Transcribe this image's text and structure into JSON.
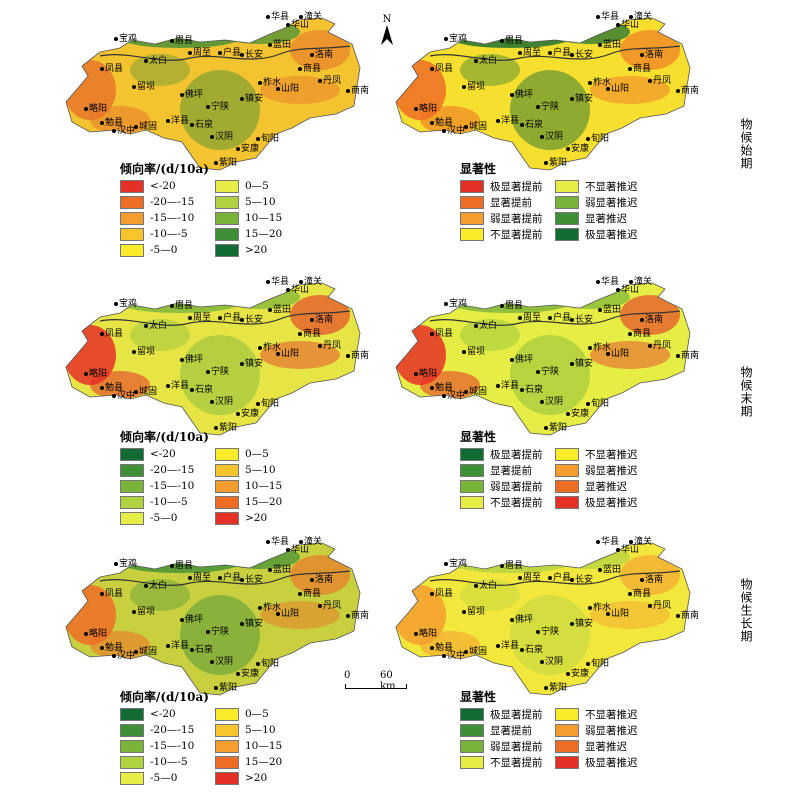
{
  "north_label": "N",
  "scale_bar": {
    "start": "0",
    "end": "60 km"
  },
  "period_labels": [
    "物候始期",
    "物候末期",
    "物候生长期"
  ],
  "cities": [
    "宝鸡",
    "眉县",
    "华县",
    "潼关",
    "华山",
    "蓝田",
    "周至",
    "户县",
    "长安",
    "太白",
    "凤县",
    "洛南",
    "商县",
    "柞水",
    "丹凤",
    "留坝",
    "佛坪",
    "镇安",
    "山阳",
    "商南",
    "略阳",
    "宁陕",
    "勉县",
    "洋县",
    "城固",
    "汉中",
    "石泉",
    "汉阴",
    "旬阳",
    "安康",
    "紫阳"
  ],
  "city_labels_alt": {
    "户县": "户县",
    "城固": "城固"
  },
  "legend_trend": {
    "title": "倾向率/(d/10a)",
    "rows_start": [
      {
        "label": "<-20",
        "color": "#e53027"
      },
      {
        "label": "-20—-15",
        "color": "#ee6d25"
      },
      {
        "label": "-15—-10",
        "color": "#f59d2e"
      },
      {
        "label": "-10—-5",
        "color": "#f9c52f"
      },
      {
        "label": "-5—0",
        "color": "#fbec2b"
      },
      {
        "label": "0—5",
        "color": "#e6ee45"
      },
      {
        "label": "5—10",
        "color": "#b1d241"
      },
      {
        "label": "10—15",
        "color": "#79b33a"
      },
      {
        "label": "15—20",
        "color": "#3f8f36"
      },
      {
        "label": ">20",
        "color": "#126b33"
      }
    ],
    "rows_end": [
      {
        "label": "<-20",
        "color": "#126b33"
      },
      {
        "label": "-20—-15",
        "color": "#3f8f36"
      },
      {
        "label": "-15—-10",
        "color": "#79b33a"
      },
      {
        "label": "-10—-5",
        "color": "#b1d241"
      },
      {
        "label": "-5—0",
        "color": "#e6ee45"
      },
      {
        "label": "0—5",
        "color": "#fbec2b"
      },
      {
        "label": "5—10",
        "color": "#f9c52f"
      },
      {
        "label": "10—15",
        "color": "#f59d2e"
      },
      {
        "label": "15—20",
        "color": "#ee6d25"
      },
      {
        "label": ">20",
        "color": "#e53027"
      }
    ]
  },
  "legend_sig": {
    "title": "显著性",
    "rows_start": [
      {
        "label": "极显著提前",
        "color": "#e53027"
      },
      {
        "label": "显著提前",
        "color": "#ee6d25"
      },
      {
        "label": "弱显著提前",
        "color": "#f59d2e"
      },
      {
        "label": "不显著提前",
        "color": "#fbec2b"
      },
      {
        "label": "不显著推迟",
        "color": "#e6ee45"
      },
      {
        "label": "弱显著推迟",
        "color": "#79b33a"
      },
      {
        "label": "显著推迟",
        "color": "#3f8f36"
      },
      {
        "label": "极显著推迟",
        "color": "#126b33"
      }
    ],
    "rows_end": [
      {
        "label": "极显著提前",
        "color": "#126b33"
      },
      {
        "label": "显著提前",
        "color": "#3f8f36"
      },
      {
        "label": "弱显著提前",
        "color": "#79b33a"
      },
      {
        "label": "不显著提前",
        "color": "#e6ee45"
      },
      {
        "label": "不显著推迟",
        "color": "#fbec2b"
      },
      {
        "label": "弱显著推迟",
        "color": "#f59d2e"
      },
      {
        "label": "显著推迟",
        "color": "#ee6d25"
      },
      {
        "label": "极显著推迟",
        "color": "#e53027"
      }
    ]
  },
  "panels": [
    {
      "id": "start-trend",
      "base": "#f3c330",
      "accent": "#e8762a",
      "green": "#3f8f36"
    },
    {
      "id": "start-sig",
      "base": "#f6df2e",
      "accent": "#ee6d25",
      "green": "#126b33"
    },
    {
      "id": "end-trend",
      "base": "#e7e545",
      "accent": "#e53027",
      "green": "#79b33a"
    },
    {
      "id": "end-sig",
      "base": "#e6ee45",
      "accent": "#e53027",
      "green": "#79b33a"
    },
    {
      "id": "grow-trend",
      "base": "#c9d040",
      "accent": "#ee6d25",
      "green": "#3f8f36"
    },
    {
      "id": "grow-sig",
      "base": "#f2e73c",
      "accent": "#f59d2e",
      "green": "#b1d241"
    }
  ]
}
